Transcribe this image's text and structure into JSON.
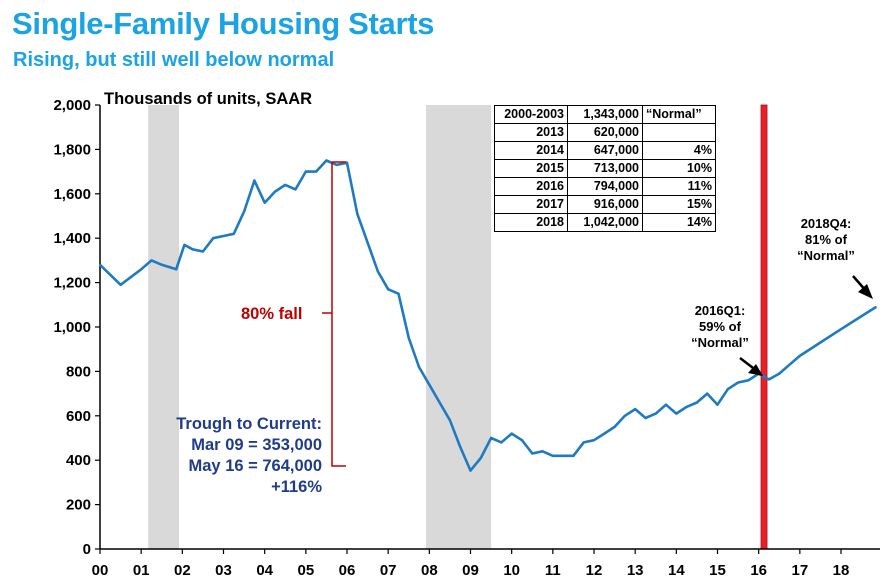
{
  "title": "Single-Family Housing Starts",
  "subtitle": "Rising, but still well below normal",
  "colors": {
    "title": "#1BA3E3",
    "line": "#1F7BC1",
    "recession": "#D9D9D9",
    "marker": "#E8202A",
    "fall": "#C00000",
    "trough_text": "#1F3C88"
  },
  "chart_data": {
    "type": "line",
    "ylabel": "Thousands of units, SAAR",
    "xlabel": "",
    "ylim": [
      0,
      2000
    ],
    "xlim": [
      2000,
      2018.85
    ],
    "y_ticks": [
      "0",
      "200",
      "400",
      "600",
      "800",
      "1,000",
      "1,200",
      "1,400",
      "1,600",
      "1,800",
      "2,000"
    ],
    "x_ticks": [
      "00",
      "01",
      "02",
      "03",
      "04",
      "05",
      "06",
      "07",
      "08",
      "09",
      "10",
      "11",
      "12",
      "13",
      "14",
      "15",
      "16",
      "17",
      "18"
    ],
    "grid": false,
    "recessions": [
      [
        2001.17,
        2001.92
      ],
      [
        2007.92,
        2009.5
      ]
    ],
    "marker_x": 2016.13,
    "series": [
      {
        "x": [
          2000.0,
          2000.5,
          2001.0,
          2001.25,
          2001.5,
          2001.85,
          2002.05,
          2002.25,
          2002.5,
          2002.75,
          2003.0,
          2003.25,
          2003.5,
          2003.75,
          2004.0,
          2004.25,
          2004.5,
          2004.75,
          2005.0,
          2005.25,
          2005.5,
          2005.75,
          2006.0,
          2006.25,
          2006.5,
          2006.75,
          2007.0,
          2007.25,
          2007.5,
          2007.75,
          2008.0,
          2008.25,
          2008.5,
          2008.75,
          2009.0,
          2009.25,
          2009.5,
          2009.75,
          2010.0,
          2010.25,
          2010.5,
          2010.75,
          2011.0,
          2011.25,
          2011.5,
          2011.75,
          2012.0,
          2012.25,
          2012.5,
          2012.75,
          2013.0,
          2013.25,
          2013.5,
          2013.75,
          2014.0,
          2014.25,
          2014.5,
          2014.75,
          2015.0,
          2015.25,
          2015.5,
          2015.75,
          2016.0,
          2016.25,
          2016.5,
          2016.75,
          2017.0,
          2017.5,
          2018.0,
          2018.85
        ],
        "values": [
          1280,
          1190,
          1260,
          1300,
          1280,
          1260,
          1370,
          1350,
          1340,
          1400,
          1410,
          1420,
          1520,
          1660,
          1560,
          1610,
          1640,
          1620,
          1700,
          1700,
          1750,
          1730,
          1740,
          1510,
          1380,
          1250,
          1170,
          1150,
          950,
          820,
          740,
          660,
          580,
          460,
          353,
          410,
          500,
          480,
          520,
          490,
          430,
          440,
          420,
          420,
          420,
          480,
          490,
          520,
          550,
          600,
          630,
          590,
          610,
          650,
          610,
          640,
          660,
          700,
          650,
          720,
          750,
          760,
          790,
          764,
          790,
          830,
          870,
          930,
          990,
          1090
        ]
      }
    ]
  },
  "annotations": {
    "fall_label": "80% fall",
    "trough_lines": [
      "Trough to Current:",
      "Mar  09 = 353,000",
      "May  16 = 764,000",
      "+116%"
    ],
    "q1_note": [
      "2016Q1:",
      "59% of",
      "“Normal”"
    ],
    "q4_note": [
      "2018Q4:",
      "81% of",
      "“Normal”"
    ]
  },
  "table": {
    "rows": [
      [
        "2000-2003",
        "1,343,000",
        "“Normal”"
      ],
      [
        "2013",
        "620,000",
        ""
      ],
      [
        "2014",
        "647,000",
        "4%"
      ],
      [
        "2015",
        "713,000",
        "10%"
      ],
      [
        "2016",
        "794,000",
        "11%"
      ],
      [
        "2017",
        "916,000",
        "15%"
      ],
      [
        "2018",
        "1,042,000",
        "14%"
      ]
    ]
  }
}
